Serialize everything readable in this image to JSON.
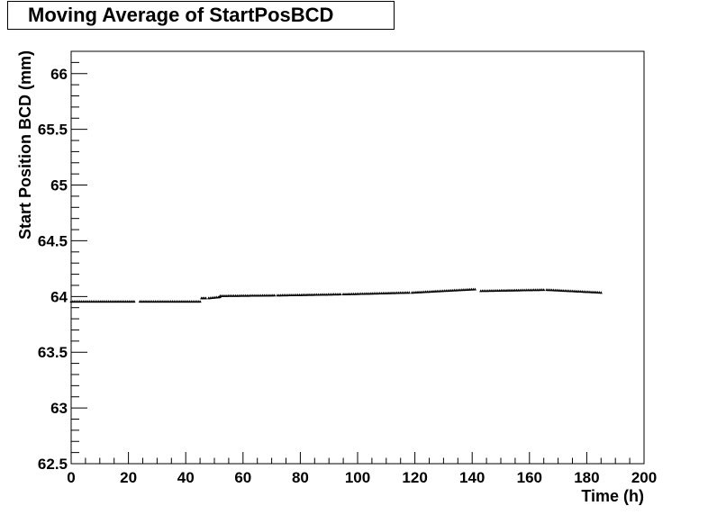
{
  "chart_data": {
    "type": "scatter",
    "title": "Moving Average of StartPosBCD",
    "xlabel": "Time (h)",
    "ylabel": "Start Position BCD (mm)",
    "xlim": [
      0,
      200
    ],
    "ylim": [
      62.5,
      66.2
    ],
    "xticks": [
      0,
      20,
      40,
      60,
      80,
      100,
      120,
      140,
      160,
      180,
      200
    ],
    "yticks": [
      62.5,
      63,
      63.5,
      64,
      64.5,
      65,
      65.5,
      66
    ],
    "xtick_labels": [
      "0",
      "20",
      "40",
      "60",
      "80",
      "100",
      "120",
      "140",
      "160",
      "180",
      "200"
    ],
    "ytick_labels": [
      "62.5",
      "63",
      "63.5",
      "64",
      "64.5",
      "65",
      "65.5",
      "66"
    ],
    "grid": false,
    "series": [
      {
        "segments": [
          {
            "x_start": 0,
            "x_end": 22,
            "y_start": 63.955,
            "y_end": 63.955
          },
          {
            "x_start": 24,
            "x_end": 45,
            "y_start": 63.955,
            "y_end": 63.955
          },
          {
            "x_start": 45.5,
            "x_end": 47,
            "y_start": 63.985,
            "y_end": 63.985
          },
          {
            "x_start": 48,
            "x_end": 52,
            "y_start": 63.985,
            "y_end": 63.995
          },
          {
            "x_start": 52,
            "x_end": 71,
            "y_start": 64.005,
            "y_end": 64.01
          },
          {
            "x_start": 72,
            "x_end": 94,
            "y_start": 64.01,
            "y_end": 64.02
          },
          {
            "x_start": 95,
            "x_end": 118,
            "y_start": 64.02,
            "y_end": 64.035
          },
          {
            "x_start": 119,
            "x_end": 141,
            "y_start": 64.035,
            "y_end": 64.065
          },
          {
            "x_start": 143,
            "x_end": 165,
            "y_start": 64.05,
            "y_end": 64.06
          },
          {
            "x_start": 166,
            "x_end": 185,
            "y_start": 64.06,
            "y_end": 64.035
          }
        ]
      }
    ]
  }
}
